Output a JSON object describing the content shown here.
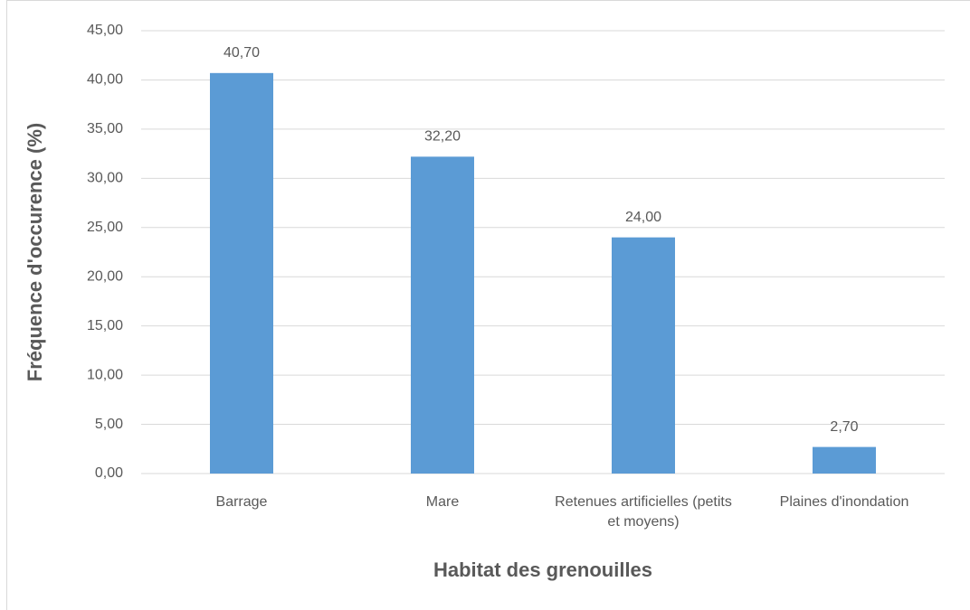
{
  "chart_data": {
    "type": "bar",
    "x_label": "Habitat des grenouilles",
    "y_label": "Fréquence d'occurence (%)",
    "categories": [
      "Barrage",
      "Mare",
      "Retenues artificielles (petits et moyens)",
      "Plaines d'inondation"
    ],
    "values": [
      40.7,
      32.2,
      24.0,
      2.7
    ],
    "value_labels": [
      "40,70",
      "32,20",
      "24,00",
      "2,70"
    ],
    "color": "#5b9bd5",
    "ylim": [
      0,
      45
    ],
    "yticks": [
      {
        "value": 0,
        "label": "0,00"
      },
      {
        "value": 5,
        "label": "5,00"
      },
      {
        "value": 10,
        "label": "10,00"
      },
      {
        "value": 15,
        "label": "15,00"
      },
      {
        "value": 20,
        "label": "20,00"
      },
      {
        "value": 25,
        "label": "25,00"
      },
      {
        "value": 30,
        "label": "30,00"
      },
      {
        "value": 35,
        "label": "35,00"
      },
      {
        "value": 40,
        "label": "40,00"
      },
      {
        "value": 45,
        "label": "45,00"
      }
    ],
    "grid": true
  }
}
